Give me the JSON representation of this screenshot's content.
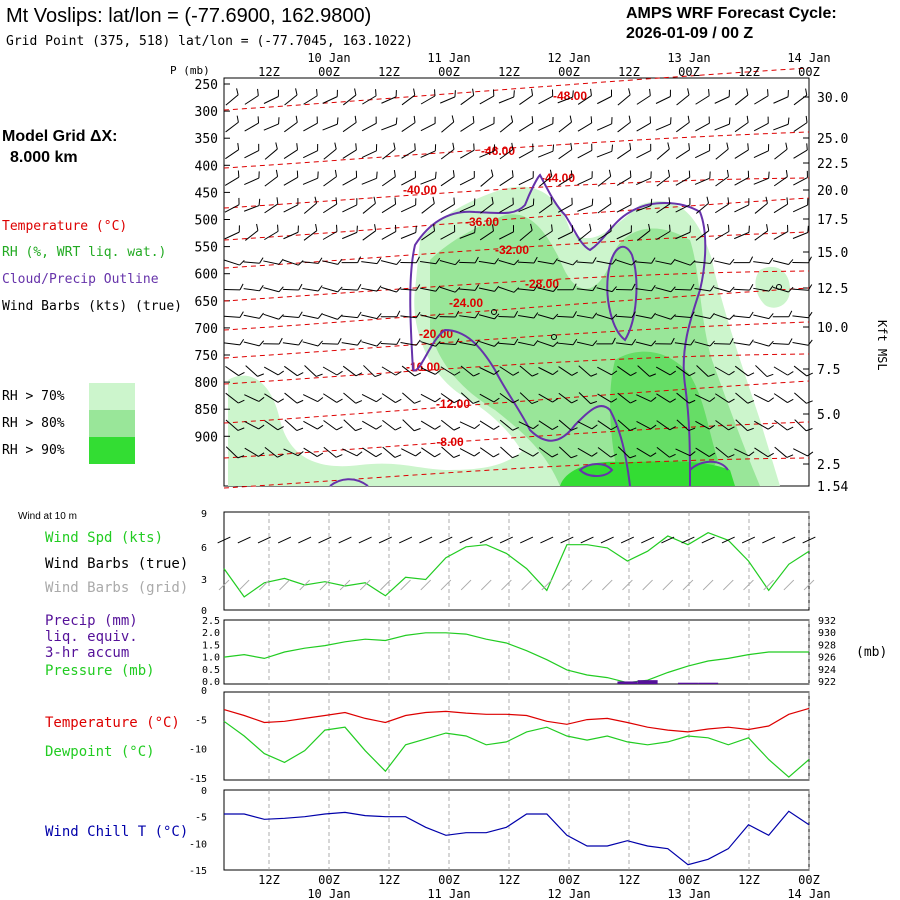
{
  "header": {
    "station_title": "Mt Voslips:  lat/lon = (-77.6900, 162.9800)",
    "grid_point": "Grid Point (375, 518) lat/lon = (-77.7045, 163.1022)",
    "forecast_title": "AMPS WRF Forecast Cycle:",
    "forecast_cycle": "2026-01-09 / 00  Z"
  },
  "left_panel": {
    "model_grid_label": "Model Grid ΔX:",
    "model_grid_value": "8.000 km",
    "legend_temperature": "Temperature (°C)",
    "legend_rh": "RH (%, WRT liq. wat.)",
    "legend_cloud": "Cloud/Precip Outline",
    "legend_wind": "Wind Barbs (kts) (true)",
    "rh_levels": [
      {
        "label": "RH > 70%",
        "color": "#ccf5cc"
      },
      {
        "label": "RH > 80%",
        "color": "#99e699"
      },
      {
        "label": "RH > 90%",
        "color": "#33dd33"
      }
    ]
  },
  "colors": {
    "temperature": "#dd0000",
    "rh_text": "#22aa22",
    "cloud": "#6633aa",
    "wind_speed": "#22cc22",
    "wind_grid": "#aaaaaa",
    "wind_chill": "#0000aa",
    "precip": "#551199",
    "grid": "#999999"
  },
  "time_axis": {
    "top_hours": [
      "12Z",
      "00Z",
      "12Z",
      "00Z",
      "12Z",
      "00Z",
      "12Z",
      "00Z",
      "12Z",
      "00Z"
    ],
    "top_dates": [
      "10 Jan",
      "11 Jan",
      "12 Jan",
      "13 Jan",
      "14 Jan"
    ],
    "bottom_hours": [
      "12Z",
      "00Z",
      "12Z",
      "00Z",
      "12Z",
      "00Z",
      "12Z",
      "00Z",
      "12Z",
      "00Z"
    ],
    "bottom_dates": [
      "10 Jan",
      "11 Jan",
      "12 Jan",
      "13 Jan",
      "14 Jan"
    ]
  },
  "chart_data": [
    {
      "type": "cross-section",
      "title": "Vertical profile",
      "ylabel": "P (mb)",
      "y2label": "Kft MSL",
      "pressure_ticks": [
        "250",
        "300",
        "350",
        "400",
        "450",
        "500",
        "550",
        "600",
        "650",
        "700",
        "750",
        "800",
        "850",
        "900"
      ],
      "kft_ticks": [
        "30.0",
        "25.0",
        "22.5",
        "20.0",
        "17.5",
        "15.0",
        "12.5",
        "10.0",
        "7.5",
        "5.0",
        "2.5",
        "1.54"
      ],
      "temperature_labels": [
        "-48.00",
        "-46.00",
        "-44.00",
        "-40.00",
        "-36.00",
        "-32.00",
        "-28.00",
        "-24.00",
        "-20.00",
        "-16.00",
        "-12.00",
        "-8.00"
      ]
    },
    {
      "type": "line",
      "title": "Wind at 10 m",
      "ylim": [
        0,
        9
      ],
      "yticks": [
        "9",
        "6",
        "3",
        "0"
      ],
      "legend": [
        "Wind Spd (kts)",
        "Wind Barbs (true)",
        "Wind Barbs (grid)"
      ],
      "series": [
        {
          "name": "Wind Spd (kts)",
          "values": [
            3.8,
            1.2,
            2.5,
            2.9,
            2.3,
            2.6,
            2.2,
            2.5,
            1.3,
            3.0,
            2.8,
            4.8,
            5.8,
            6.0,
            5.2,
            3.8,
            1.8,
            6.0,
            6.0,
            5.7,
            4.5,
            5.4,
            6.8,
            6.0,
            7.1,
            6.4,
            4.5,
            1.8,
            4.2,
            5.4
          ]
        }
      ]
    },
    {
      "type": "line",
      "title": "Precip / Pressure",
      "legend": [
        "Precip (mm)",
        "liq. equiv.",
        "3-hr accum",
        "Pressure (mb)"
      ],
      "y_left_ticks": [
        "2.5",
        "2.0",
        "1.5",
        "1.0",
        "0.5",
        "0.0"
      ],
      "y_right_ticks": [
        "932",
        "930",
        "928",
        "926",
        "924",
        "922"
      ],
      "y_right_label": "(mb)",
      "series": [
        {
          "name": "Pressure (mb)",
          "ylim": [
            922,
            932
          ],
          "values": [
            926.2,
            926.6,
            926.0,
            927.0,
            927.6,
            928.0,
            928.6,
            929.0,
            928.8,
            929.6,
            930.0,
            930.0,
            929.8,
            929.0,
            928.4,
            927.2,
            925.8,
            924.2,
            923.4,
            923.0,
            922.2,
            922.6,
            923.8,
            924.8,
            925.6,
            926.0,
            926.6,
            927.0,
            927.0,
            927.0
          ]
        },
        {
          "name": "Precip (mm)",
          "ylim": [
            0,
            2.5
          ],
          "values": [
            0,
            0,
            0,
            0,
            0,
            0,
            0,
            0,
            0,
            0,
            0,
            0,
            0,
            0,
            0,
            0,
            0,
            0,
            0,
            0,
            0.1,
            0.15,
            0,
            0.05,
            0.05,
            0,
            0,
            0,
            0,
            0
          ]
        }
      ]
    },
    {
      "type": "line",
      "title": "Temperature / Dewpoint",
      "ylim": [
        -15,
        0
      ],
      "yticks": [
        "0",
        "-5",
        "-10",
        "-15"
      ],
      "legend": [
        "Temperature (°C)",
        "Dewpoint (°C)"
      ],
      "series": [
        {
          "name": "Temperature (°C)",
          "values": [
            -3.0,
            -4.0,
            -5.2,
            -5.0,
            -4.5,
            -4.0,
            -3.5,
            -4.5,
            -5.2,
            -4.0,
            -3.5,
            -3.3,
            -3.6,
            -3.8,
            -3.8,
            -4.0,
            -5.0,
            -5.5,
            -4.7,
            -4.5,
            -5.2,
            -6.0,
            -6.5,
            -6.8,
            -6.3,
            -6.0,
            -6.4,
            -5.8,
            -3.8,
            -2.8
          ]
        },
        {
          "name": "Dewpoint (°C)",
          "values": [
            -5.0,
            -7.5,
            -10.5,
            -12.0,
            -10.0,
            -6.5,
            -6.0,
            -10.0,
            -13.5,
            -9.0,
            -8.0,
            -7.0,
            -7.5,
            -9.0,
            -8.5,
            -6.8,
            -6.0,
            -7.5,
            -8.2,
            -7.5,
            -8.5,
            -9.0,
            -8.5,
            -7.5,
            -7.8,
            -9.0,
            -7.8,
            -11.5,
            -14.5,
            -11.5
          ]
        }
      ]
    },
    {
      "type": "line",
      "title": "Wind Chill",
      "ylim": [
        -15,
        0
      ],
      "yticks": [
        "0",
        "-5",
        "-10",
        "-15"
      ],
      "legend": [
        "Wind Chill T (°C)"
      ],
      "series": [
        {
          "name": "Wind Chill T (°C)",
          "values": [
            -4.5,
            -4.5,
            -5.5,
            -5.3,
            -5.0,
            -4.5,
            -4.2,
            -4.8,
            -5.0,
            -5.0,
            -7.0,
            -8.5,
            -8.0,
            -8.0,
            -7.0,
            -4.5,
            -4.5,
            -8.5,
            -10.5,
            -10.5,
            -9.5,
            -10.5,
            -11.0,
            -14.0,
            -13.0,
            -11.0,
            -6.5,
            -8.5,
            -4.0,
            -6.5
          ]
        }
      ]
    }
  ]
}
